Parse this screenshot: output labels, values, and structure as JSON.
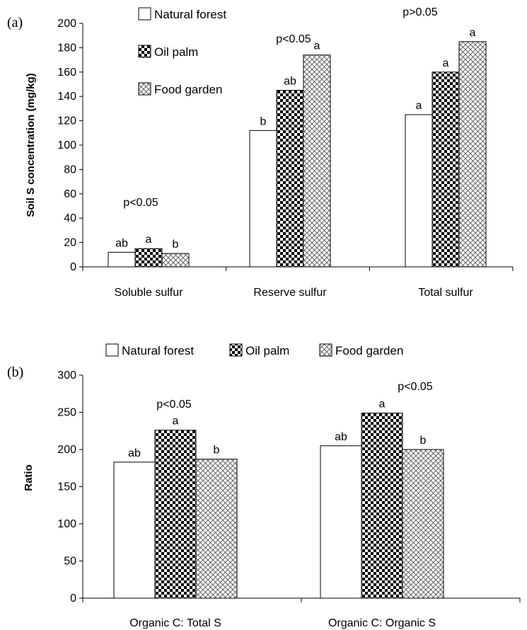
{
  "chart_data": [
    {
      "type": "bar",
      "panel_label": "(a)",
      "ylabel": "Soil S concentration  (mg/kg)",
      "ylim": [
        0,
        200
      ],
      "ytick_step": 20,
      "categories": [
        "Soluble sulfur",
        "Reserve sulfur",
        "Total sulfur"
      ],
      "series": [
        {
          "name": "Natural  forest",
          "pattern": "white",
          "values": [
            12,
            112,
            125
          ]
        },
        {
          "name": "Oil palm",
          "pattern": "checker",
          "values": [
            15,
            145,
            160
          ]
        },
        {
          "name": "Food garden",
          "pattern": "crosshatch",
          "values": [
            11,
            174,
            185
          ]
        }
      ],
      "bar_labels": [
        [
          "ab",
          "a",
          "b"
        ],
        [
          "b",
          "ab",
          "a"
        ],
        [
          "a",
          "a",
          "a"
        ]
      ],
      "significance": [
        "p<0.05",
        "p<0.05",
        "p>0.05"
      ],
      "legend": "top-center, vertical",
      "grid": false
    },
    {
      "type": "bar",
      "panel_label": "(b)",
      "ylabel": "Ratio",
      "ylim": [
        0,
        300
      ],
      "ytick_step": 50,
      "categories": [
        "Organic C: Total S",
        "Organic C: Organic S"
      ],
      "series": [
        {
          "name": "Natural  forest",
          "pattern": "white",
          "values": [
            183,
            205
          ]
        },
        {
          "name": "Oil palm",
          "pattern": "checker",
          "values": [
            226,
            249
          ]
        },
        {
          "name": "Food garden",
          "pattern": "crosshatch",
          "values": [
            187,
            200
          ]
        }
      ],
      "bar_labels": [
        [
          "ab",
          "a",
          "b"
        ],
        [
          "ab",
          "a",
          "b"
        ]
      ],
      "significance": [
        "p<0.05",
        "p<0.05"
      ],
      "legend": "top, horizontal",
      "grid": false
    }
  ]
}
